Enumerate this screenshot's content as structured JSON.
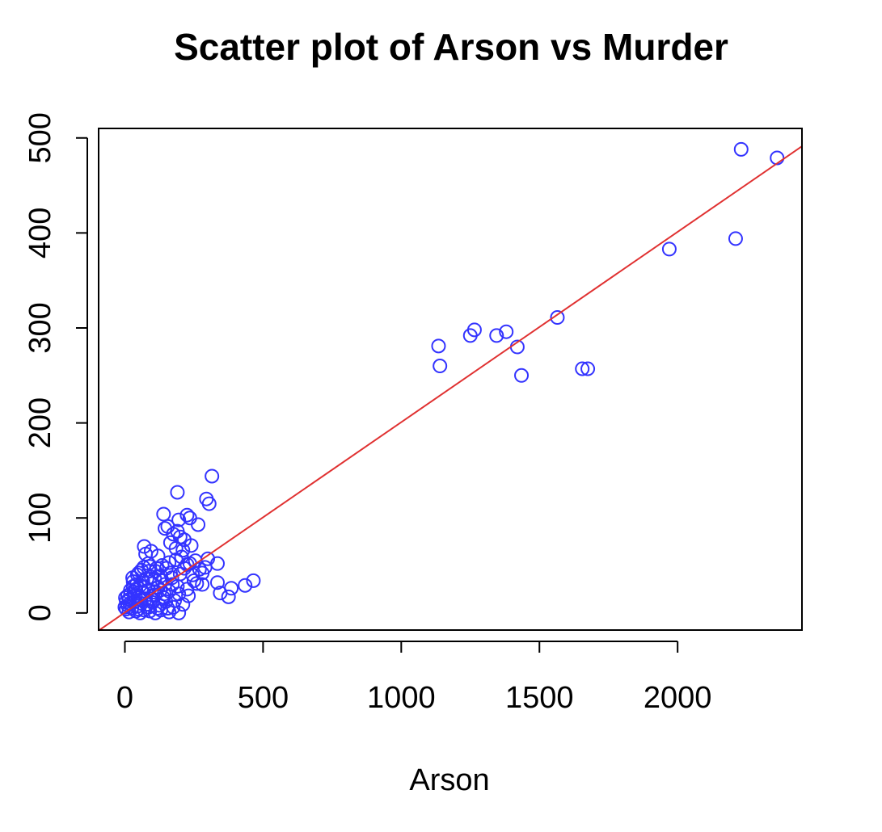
{
  "chart_data": {
    "type": "scatter",
    "title": "Scatter plot of Arson vs Murder",
    "xlabel": "Arson",
    "ylabel": "",
    "xlim": [
      -95,
      2450
    ],
    "ylim": [
      -18,
      510
    ],
    "x_ticks": [
      0,
      500,
      1000,
      1500,
      2000
    ],
    "x_tick_labels": [
      "0",
      "500",
      "1000",
      "1500",
      "2000"
    ],
    "y_ticks": [
      0,
      100,
      200,
      300,
      400,
      500
    ],
    "y_tick_labels": [
      "0",
      "100",
      "200",
      "300",
      "400",
      "500"
    ],
    "grid": false,
    "legend": "none",
    "colors": {
      "points": "#3333ff",
      "fit_line": "#e03131",
      "axes": "#000000"
    },
    "fit_line": {
      "intercept": 0.5,
      "slope": 0.2003
    },
    "points": [
      {
        "x": 2230,
        "y": 488
      },
      {
        "x": 2360,
        "y": 479
      },
      {
        "x": 2210,
        "y": 394
      },
      {
        "x": 1970,
        "y": 383
      },
      {
        "x": 1565,
        "y": 311
      },
      {
        "x": 1265,
        "y": 298
      },
      {
        "x": 1380,
        "y": 296
      },
      {
        "x": 1345,
        "y": 292
      },
      {
        "x": 1250,
        "y": 292
      },
      {
        "x": 1135,
        "y": 281
      },
      {
        "x": 1420,
        "y": 280
      },
      {
        "x": 1140,
        "y": 260
      },
      {
        "x": 1655,
        "y": 257
      },
      {
        "x": 1675,
        "y": 257
      },
      {
        "x": 1435,
        "y": 250
      },
      {
        "x": 315,
        "y": 144
      },
      {
        "x": 190,
        "y": 127
      },
      {
        "x": 295,
        "y": 120
      },
      {
        "x": 305,
        "y": 115
      },
      {
        "x": 140,
        "y": 104
      },
      {
        "x": 225,
        "y": 103
      },
      {
        "x": 235,
        "y": 100
      },
      {
        "x": 195,
        "y": 98
      },
      {
        "x": 265,
        "y": 93
      },
      {
        "x": 155,
        "y": 91
      },
      {
        "x": 145,
        "y": 89
      },
      {
        "x": 190,
        "y": 86
      },
      {
        "x": 175,
        "y": 83
      },
      {
        "x": 200,
        "y": 80
      },
      {
        "x": 215,
        "y": 77
      },
      {
        "x": 165,
        "y": 74
      },
      {
        "x": 240,
        "y": 71
      },
      {
        "x": 70,
        "y": 70
      },
      {
        "x": 185,
        "y": 68
      },
      {
        "x": 210,
        "y": 66
      },
      {
        "x": 95,
        "y": 65
      },
      {
        "x": 75,
        "y": 62
      },
      {
        "x": 120,
        "y": 60
      },
      {
        "x": 300,
        "y": 57
      },
      {
        "x": 255,
        "y": 55
      },
      {
        "x": 335,
        "y": 52
      },
      {
        "x": 225,
        "y": 51
      },
      {
        "x": 90,
        "y": 49
      },
      {
        "x": 150,
        "y": 47
      },
      {
        "x": 270,
        "y": 46
      },
      {
        "x": 60,
        "y": 45
      },
      {
        "x": 110,
        "y": 44
      },
      {
        "x": 280,
        "y": 42
      },
      {
        "x": 200,
        "y": 41
      },
      {
        "x": 45,
        "y": 40
      },
      {
        "x": 130,
        "y": 39
      },
      {
        "x": 170,
        "y": 37
      },
      {
        "x": 80,
        "y": 36
      },
      {
        "x": 465,
        "y": 34
      },
      {
        "x": 250,
        "y": 34
      },
      {
        "x": 30,
        "y": 33
      },
      {
        "x": 335,
        "y": 32
      },
      {
        "x": 100,
        "y": 31
      },
      {
        "x": 145,
        "y": 30
      },
      {
        "x": 280,
        "y": 30
      },
      {
        "x": 55,
        "y": 29
      },
      {
        "x": 435,
        "y": 29
      },
      {
        "x": 190,
        "y": 28
      },
      {
        "x": 120,
        "y": 27
      },
      {
        "x": 385,
        "y": 26
      },
      {
        "x": 40,
        "y": 25
      },
      {
        "x": 85,
        "y": 24
      },
      {
        "x": 160,
        "y": 23
      },
      {
        "x": 345,
        "y": 21
      },
      {
        "x": 65,
        "y": 21
      },
      {
        "x": 20,
        "y": 20
      },
      {
        "x": 110,
        "y": 19
      },
      {
        "x": 230,
        "y": 18
      },
      {
        "x": 375,
        "y": 17
      },
      {
        "x": 50,
        "y": 17
      },
      {
        "x": 140,
        "y": 16
      },
      {
        "x": 75,
        "y": 15
      },
      {
        "x": 15,
        "y": 14
      },
      {
        "x": 180,
        "y": 13
      },
      {
        "x": 35,
        "y": 12
      },
      {
        "x": 100,
        "y": 11
      },
      {
        "x": 60,
        "y": 10
      },
      {
        "x": 210,
        "y": 9
      },
      {
        "x": 10,
        "y": 8
      },
      {
        "x": 125,
        "y": 8
      },
      {
        "x": 45,
        "y": 7
      },
      {
        "x": 85,
        "y": 6
      },
      {
        "x": 25,
        "y": 5
      },
      {
        "x": 155,
        "y": 5
      },
      {
        "x": 5,
        "y": 4
      },
      {
        "x": 70,
        "y": 3
      },
      {
        "x": 40,
        "y": 2
      },
      {
        "x": 160,
        "y": 1
      },
      {
        "x": 195,
        "y": 0
      },
      {
        "x": 110,
        "y": 0
      },
      {
        "x": 15,
        "y": 1
      },
      {
        "x": 55,
        "y": 0
      },
      {
        "x": 90,
        "y": 2
      },
      {
        "x": 130,
        "y": 3
      },
      {
        "x": 175,
        "y": 6
      },
      {
        "x": 65,
        "y": 34
      },
      {
        "x": 95,
        "y": 38
      },
      {
        "x": 50,
        "y": 42
      },
      {
        "x": 115,
        "y": 47
      },
      {
        "x": 135,
        "y": 50
      },
      {
        "x": 160,
        "y": 53
      },
      {
        "x": 185,
        "y": 56
      },
      {
        "x": 205,
        "y": 59
      },
      {
        "x": 85,
        "y": 52
      },
      {
        "x": 30,
        "y": 28
      },
      {
        "x": 20,
        "y": 24
      },
      {
        "x": 10,
        "y": 18
      },
      {
        "x": 5,
        "y": 12
      },
      {
        "x": 0,
        "y": 6
      },
      {
        "x": 2,
        "y": 16
      },
      {
        "x": 28,
        "y": 37
      },
      {
        "x": 38,
        "y": 18
      },
      {
        "x": 72,
        "y": 27
      },
      {
        "x": 105,
        "y": 22
      },
      {
        "x": 135,
        "y": 34
      },
      {
        "x": 165,
        "y": 42
      },
      {
        "x": 215,
        "y": 47
      },
      {
        "x": 245,
        "y": 40
      },
      {
        "x": 260,
        "y": 31
      },
      {
        "x": 225,
        "y": 25
      },
      {
        "x": 195,
        "y": 20
      },
      {
        "x": 148,
        "y": 12
      },
      {
        "x": 118,
        "y": 5
      },
      {
        "x": 78,
        "y": 9
      },
      {
        "x": 58,
        "y": 14
      },
      {
        "x": 42,
        "y": 30
      },
      {
        "x": 88,
        "y": 44
      },
      {
        "x": 108,
        "y": 36
      },
      {
        "x": 128,
        "y": 24
      },
      {
        "x": 68,
        "y": 48
      },
      {
        "x": 33,
        "y": 22
      },
      {
        "x": 18,
        "y": 10
      },
      {
        "x": 48,
        "y": 4
      },
      {
        "x": 98,
        "y": 15
      },
      {
        "x": 142,
        "y": 20
      },
      {
        "x": 172,
        "y": 30
      },
      {
        "x": 235,
        "y": 52
      },
      {
        "x": 290,
        "y": 48
      }
    ]
  }
}
